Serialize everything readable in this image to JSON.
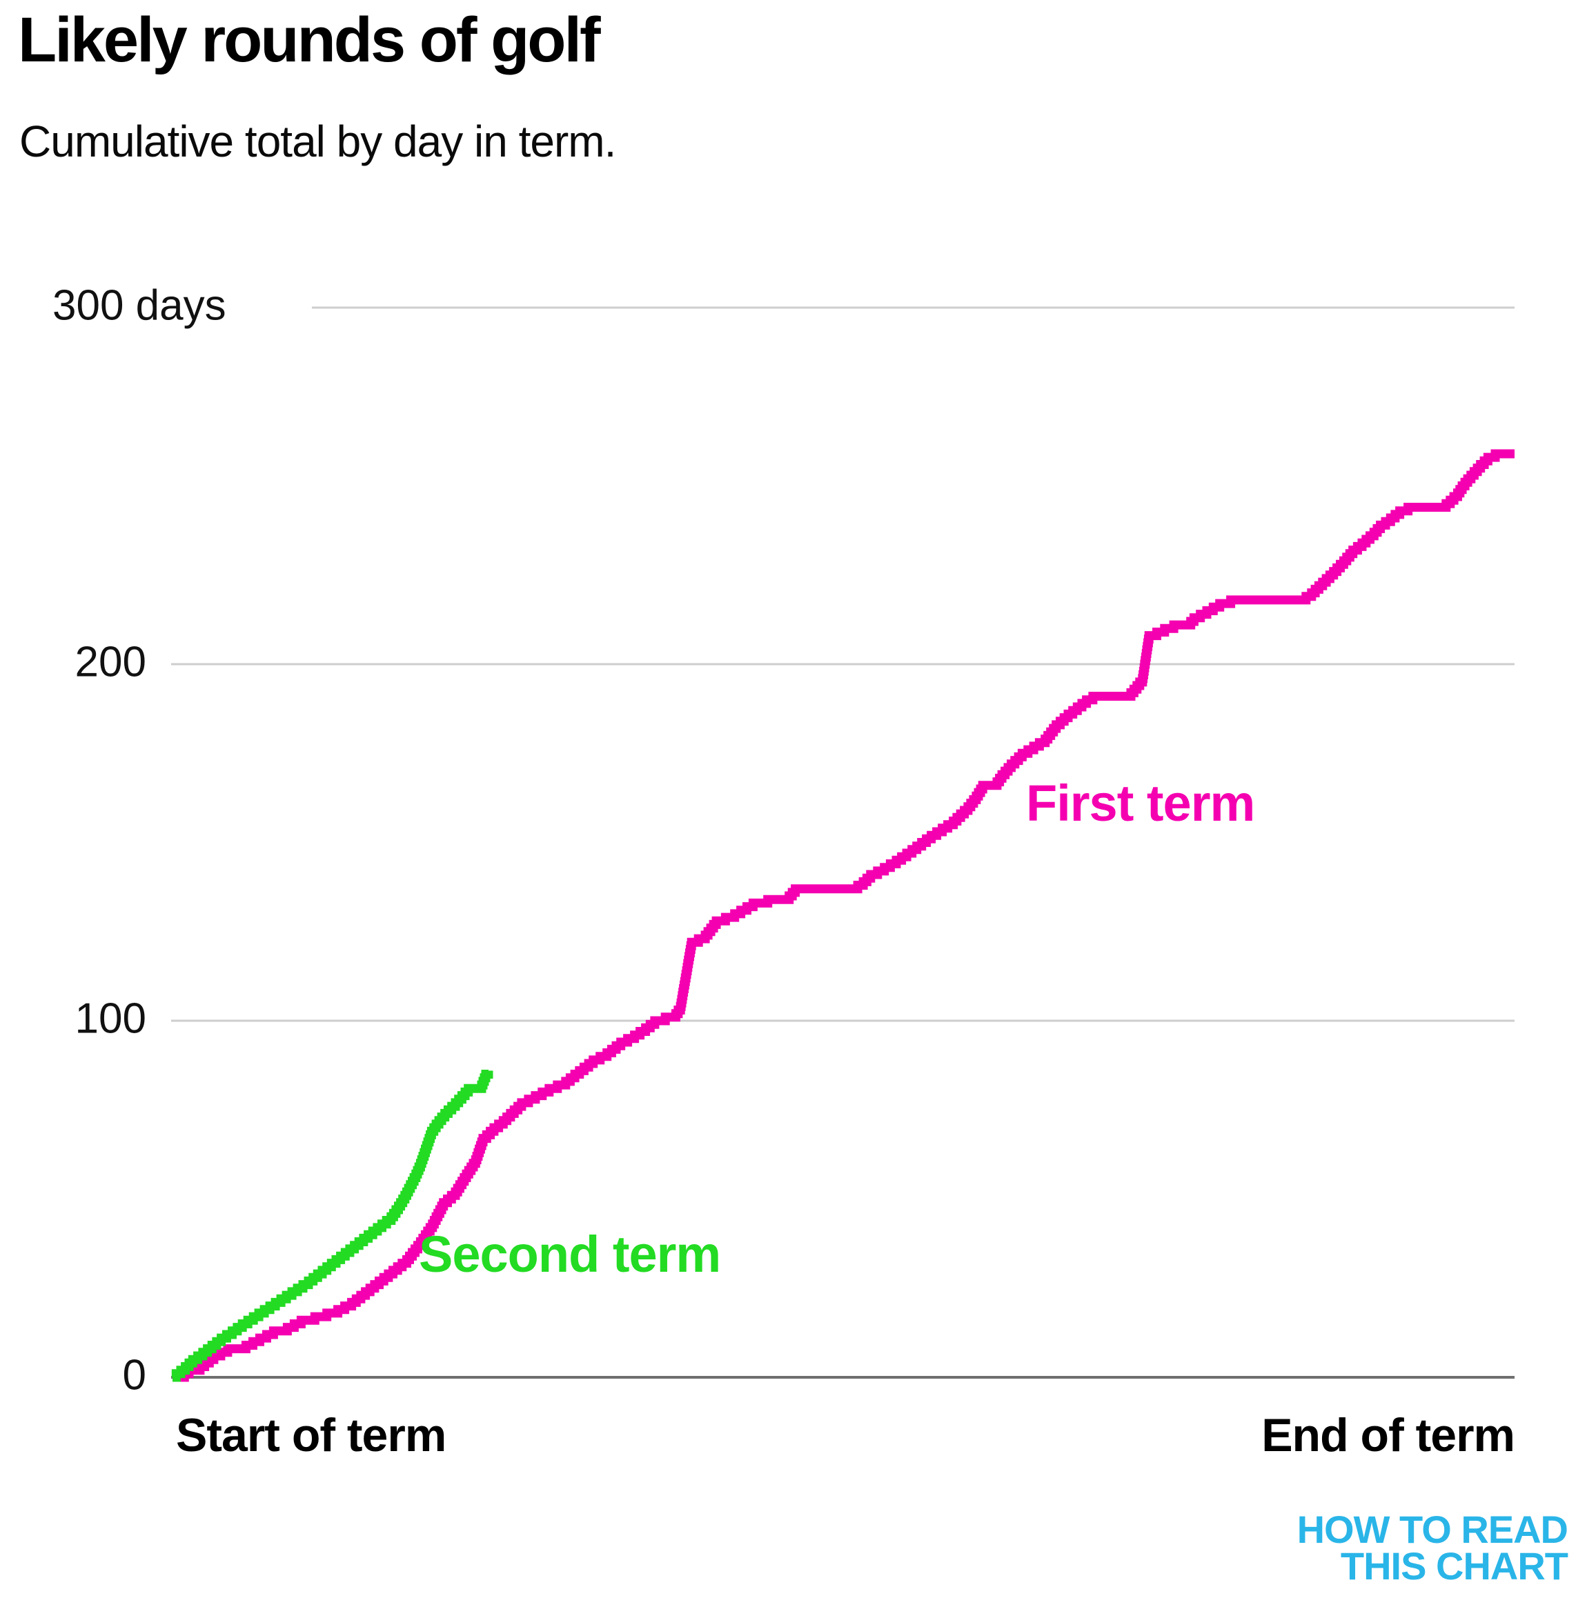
{
  "header": {
    "title": "Likely rounds of golf",
    "subtitle": "Cumulative total by day in term."
  },
  "y_axis": {
    "tick_labels": [
      "300 days",
      "200",
      "100",
      "0"
    ]
  },
  "x_axis": {
    "start_label": "Start of term",
    "end_label": "End of term"
  },
  "series_labels": {
    "first": "First term",
    "second": "Second term"
  },
  "logo": {
    "line1": "HOW TO READ",
    "line2": "THIS CHART",
    "color": "#2ab5e8"
  },
  "colors": {
    "first_term": "#f500b0",
    "second_term": "#23db23",
    "gridline": "#cecece",
    "zero_line": "#6f6f6f",
    "text": "#000000"
  },
  "chart_data": {
    "type": "line",
    "subtype": "step-cumulative",
    "title": "Likely rounds of golf",
    "subtitle": "Cumulative total by day in term.",
    "xlabel_start": "Start of term",
    "xlabel_end": "End of term",
    "x_unit": "day in term",
    "y_unit": "days",
    "x_domain": [
      0,
      1461
    ],
    "ylim": [
      0,
      300
    ],
    "yticks": [
      0,
      100,
      200,
      300
    ],
    "grid": "horizontal",
    "legend_position": "inline-labels",
    "series": [
      {
        "name": "First term",
        "color": "#f500b0",
        "points": [
          [
            0,
            0
          ],
          [
            8,
            0
          ],
          [
            18,
            2
          ],
          [
            30,
            3
          ],
          [
            45,
            6
          ],
          [
            60,
            8
          ],
          [
            80,
            9
          ],
          [
            95,
            11
          ],
          [
            110,
            13
          ],
          [
            125,
            14
          ],
          [
            140,
            16
          ],
          [
            155,
            17
          ],
          [
            168,
            18
          ],
          [
            180,
            19
          ],
          [
            195,
            21
          ],
          [
            210,
            24
          ],
          [
            225,
            27
          ],
          [
            240,
            30
          ],
          [
            255,
            33
          ],
          [
            270,
            38
          ],
          [
            283,
            43
          ],
          [
            295,
            49
          ],
          [
            308,
            52
          ],
          [
            320,
            57
          ],
          [
            330,
            61
          ],
          [
            338,
            67
          ],
          [
            350,
            70
          ],
          [
            360,
            72
          ],
          [
            368,
            74
          ],
          [
            380,
            77
          ],
          [
            395,
            79
          ],
          [
            410,
            81
          ],
          [
            428,
            83
          ],
          [
            443,
            86
          ],
          [
            458,
            89
          ],
          [
            473,
            91
          ],
          [
            488,
            94
          ],
          [
            503,
            96
          ],
          [
            515,
            98
          ],
          [
            525,
            100
          ],
          [
            548,
            102
          ],
          [
            553,
            104
          ],
          [
            565,
            122
          ],
          [
            580,
            124
          ],
          [
            592,
            128
          ],
          [
            612,
            130
          ],
          [
            632,
            133
          ],
          [
            648,
            134
          ],
          [
            668,
            134
          ],
          [
            678,
            137
          ],
          [
            740,
            137
          ],
          [
            752,
            139
          ],
          [
            760,
            141
          ],
          [
            775,
            143
          ],
          [
            788,
            145
          ],
          [
            805,
            148
          ],
          [
            826,
            152
          ],
          [
            850,
            156
          ],
          [
            866,
            160
          ],
          [
            875,
            163
          ],
          [
            882,
            166
          ],
          [
            895,
            166
          ],
          [
            903,
            169
          ],
          [
            913,
            172
          ],
          [
            925,
            175
          ],
          [
            950,
            179
          ],
          [
            962,
            183
          ],
          [
            975,
            186
          ],
          [
            985,
            188
          ],
          [
            995,
            190
          ],
          [
            1002,
            191
          ],
          [
            1040,
            191
          ],
          [
            1050,
            194
          ],
          [
            1056,
            196
          ],
          [
            1063,
            208
          ],
          [
            1080,
            210
          ],
          [
            1090,
            211
          ],
          [
            1105,
            211
          ],
          [
            1112,
            213
          ],
          [
            1126,
            215
          ],
          [
            1140,
            217
          ],
          [
            1152,
            218
          ],
          [
            1228,
            218
          ],
          [
            1240,
            220
          ],
          [
            1252,
            223
          ],
          [
            1264,
            226
          ],
          [
            1275,
            229
          ],
          [
            1285,
            232
          ],
          [
            1295,
            234
          ],
          [
            1308,
            237
          ],
          [
            1315,
            239
          ],
          [
            1326,
            241
          ],
          [
            1336,
            243
          ],
          [
            1345,
            244
          ],
          [
            1382,
            244
          ],
          [
            1391,
            246
          ],
          [
            1399,
            248
          ],
          [
            1404,
            250
          ],
          [
            1410,
            252
          ],
          [
            1417,
            254
          ],
          [
            1424,
            256
          ],
          [
            1432,
            258
          ],
          [
            1440,
            259
          ],
          [
            1461,
            259
          ]
        ]
      },
      {
        "name": "Second term",
        "color": "#23db23",
        "points": [
          [
            0,
            0
          ],
          [
            4,
            1
          ],
          [
            14,
            3
          ],
          [
            22,
            5
          ],
          [
            33,
            7
          ],
          [
            43,
            9
          ],
          [
            53,
            11
          ],
          [
            65,
            13
          ],
          [
            76,
            15
          ],
          [
            88,
            17
          ],
          [
            100,
            19
          ],
          [
            112,
            21
          ],
          [
            124,
            23
          ],
          [
            136,
            25
          ],
          [
            148,
            27
          ],
          [
            158,
            29
          ],
          [
            168,
            31
          ],
          [
            178,
            33
          ],
          [
            188,
            35
          ],
          [
            198,
            37
          ],
          [
            208,
            39
          ],
          [
            218,
            41
          ],
          [
            228,
            43
          ],
          [
            238,
            45
          ],
          [
            246,
            48
          ],
          [
            253,
            51
          ],
          [
            259,
            54
          ],
          [
            265,
            57
          ],
          [
            270,
            60
          ],
          [
            274,
            63
          ],
          [
            278,
            66
          ],
          [
            282,
            69
          ],
          [
            287,
            71
          ],
          [
            293,
            73
          ],
          [
            300,
            75
          ],
          [
            308,
            77
          ],
          [
            315,
            79
          ],
          [
            322,
            81
          ],
          [
            335,
            81
          ],
          [
            338,
            83
          ],
          [
            341,
            85
          ],
          [
            344,
            86
          ]
        ]
      }
    ]
  }
}
